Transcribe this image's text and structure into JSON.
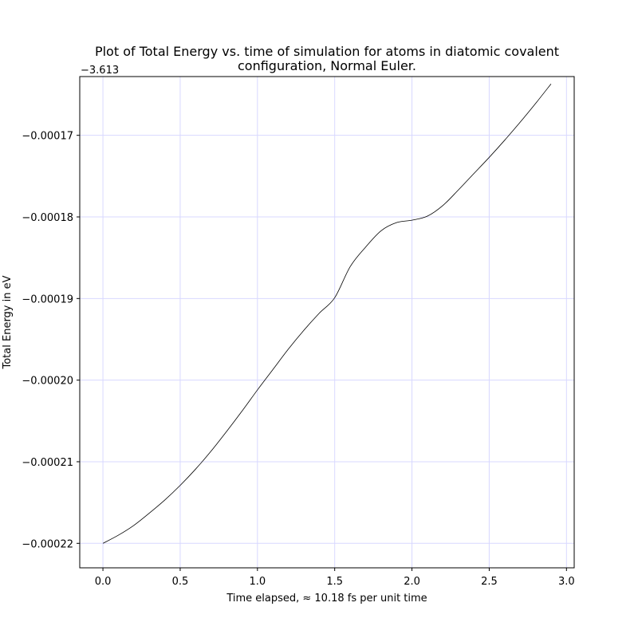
{
  "chart_data": {
    "type": "line",
    "title_lines": [
      "Plot of Total Energy vs. time of simulation for atoms in diatomic covalent",
      "configuration, Normal Euler."
    ],
    "xlabel": "Time elapsed, ≈ 10.18 fs per unit time",
    "ylabel": "Total Energy in eV",
    "y_offset_label": "−3.613",
    "xlim": [
      -0.15,
      3.05
    ],
    "ylim": [
      -0.000223,
      -0.0001628
    ],
    "x_ticks": [
      {
        "value": 0.0,
        "label": "0.0"
      },
      {
        "value": 0.5,
        "label": "0.5"
      },
      {
        "value": 1.0,
        "label": "1.0"
      },
      {
        "value": 1.5,
        "label": "1.5"
      },
      {
        "value": 2.0,
        "label": "2.0"
      },
      {
        "value": 2.5,
        "label": "2.5"
      },
      {
        "value": 3.0,
        "label": "3.0"
      }
    ],
    "y_ticks": [
      {
        "value": -0.00022,
        "label": "−0.00022"
      },
      {
        "value": -0.00021,
        "label": "−0.00021"
      },
      {
        "value": -0.0002,
        "label": "−0.00020"
      },
      {
        "value": -0.00019,
        "label": "−0.00019"
      },
      {
        "value": -0.00018,
        "label": "−0.00018"
      },
      {
        "value": -0.00017,
        "label": "−0.00017"
      }
    ],
    "grid": true,
    "grid_color": "#d8d8ff",
    "line_color": "#000000",
    "series": [
      {
        "x": [
          0.0,
          0.1,
          0.2,
          0.3,
          0.4,
          0.5,
          0.6,
          0.7,
          0.8,
          0.9,
          1.0,
          1.1,
          1.2,
          1.3,
          1.4,
          1.5,
          1.6,
          1.7,
          1.8,
          1.9,
          2.0,
          2.1,
          2.2,
          2.3,
          2.4,
          2.5,
          2.6,
          2.7,
          2.8,
          2.9
        ],
        "y": [
          -0.00022,
          -0.000219,
          -0.0002178,
          -0.0002163,
          -0.0002147,
          -0.0002129,
          -0.0002109,
          -0.0002087,
          -0.0002063,
          -0.0002038,
          -0.0002012,
          -0.0001987,
          -0.0001962,
          -0.0001939,
          -0.0001918,
          -0.0001899,
          -0.0001861,
          -0.0001837,
          -0.0001817,
          -0.0001807,
          -0.0001804,
          -0.0001799,
          -0.0001786,
          -0.0001767,
          -0.0001747,
          -0.0001727,
          -0.0001706,
          -0.0001684,
          -0.0001661,
          -0.0001637
        ]
      }
    ]
  }
}
